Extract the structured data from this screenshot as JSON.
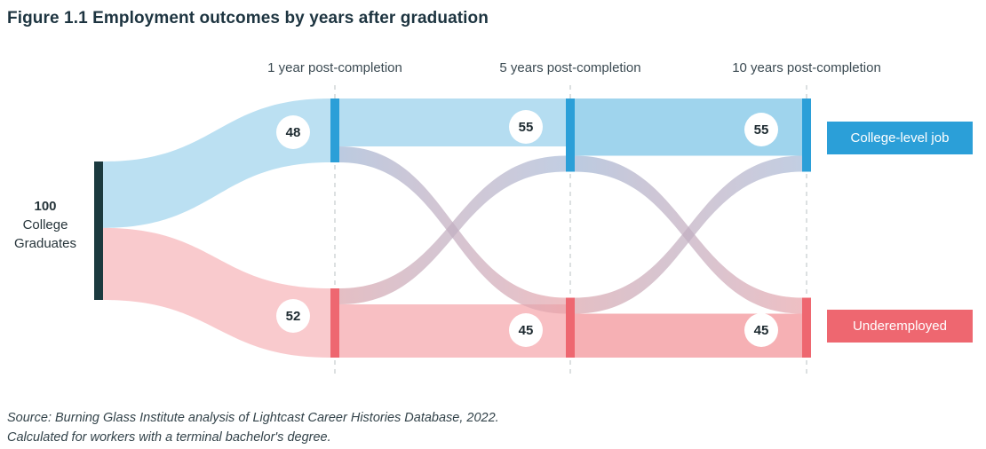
{
  "title": "Figure 1.1  Employment outcomes by years after graduation",
  "periods": [
    "1 year post-completion",
    "5 years post-completion",
    "10 years post-completion"
  ],
  "start": {
    "value": "100",
    "line1": "College",
    "line2": "Graduates"
  },
  "legend": [
    {
      "label": "College-level job",
      "color": "#2b9fd8"
    },
    {
      "label": "Underemployed",
      "color": "#ee6770"
    }
  ],
  "source": {
    "line1": "Source: Burning Glass Institute analysis of Lightcast Career Histories Database, 2022.",
    "line2": "Calculated for workers with a terminal bachelor's degree."
  },
  "chart_data": {
    "type": "sankey",
    "start_node": {
      "label": "College Graduates",
      "value": 100
    },
    "stages": [
      "1 year post-completion",
      "5 years post-completion",
      "10 years post-completion"
    ],
    "categories": [
      "College-level job",
      "Underemployed"
    ],
    "node_values": {
      "College-level job": [
        48,
        55,
        55
      ],
      "Underemployed": [
        52,
        45,
        45
      ]
    },
    "colors": {
      "College-level job": "#2b9fd8",
      "Underemployed": "#ee6770",
      "start": "#1b3a3f"
    }
  }
}
